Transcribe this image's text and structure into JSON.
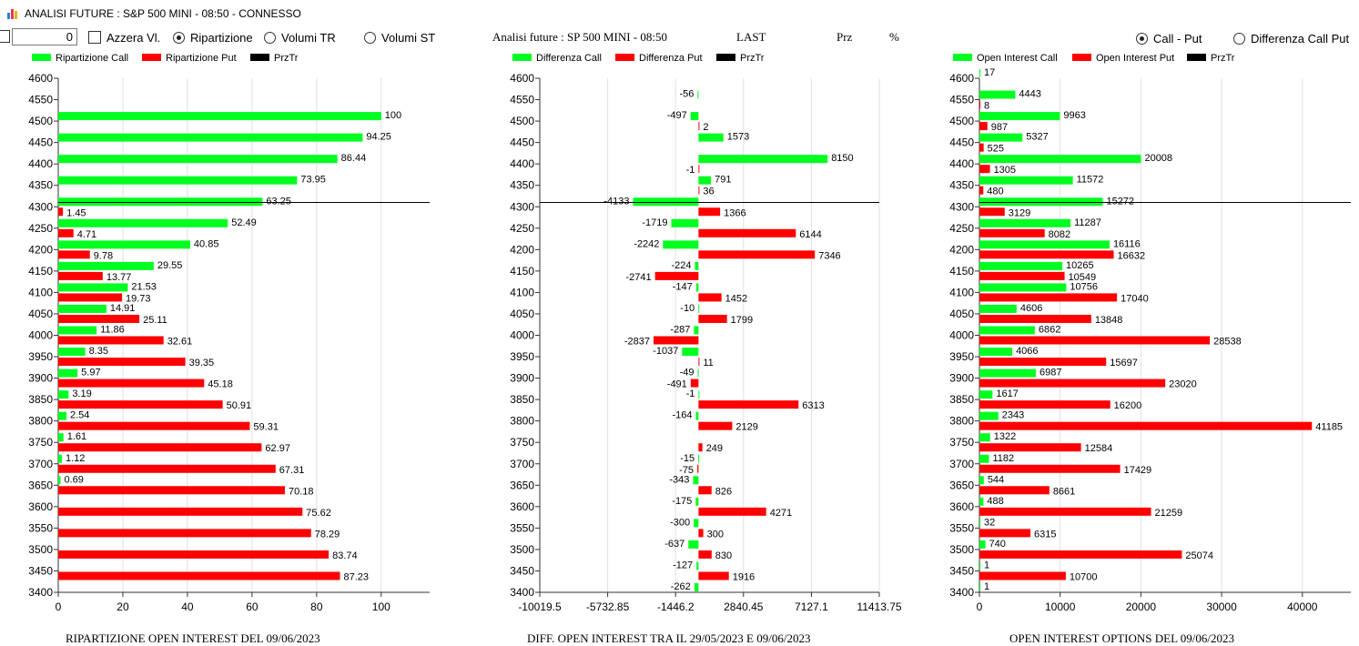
{
  "window": {
    "title": "ANALISI FUTURE : S&P 500 MINI - 08:50 - CONNESSO"
  },
  "controls": {
    "number_value": "0",
    "azzera_label": "Azzera Vl.",
    "radio_ripartizione": "Ripartizione",
    "radio_volumi_tr": "Volumi TR",
    "radio_volumi_st": "Volumi ST",
    "radio_call_put": "Call - Put",
    "radio_diff_call_put": "Differenza Call Put"
  },
  "header_info": {
    "analysis_title": "Analisi future : SP 500 MINI - 08:50",
    "last_label": "LAST",
    "prz_label": "Prz",
    "pct_label": "%"
  },
  "colors": {
    "call": "#00ff21",
    "put": "#ff0000",
    "prztr": "#000000"
  },
  "chart_data": [
    {
      "type": "bar",
      "orientation": "horizontal",
      "title": "RIPARTIZIONE OPEN INTEREST DEL 09/06/2023",
      "legend": [
        "Ripartizione Call",
        "Ripartizione Put",
        "PrzTr"
      ],
      "legend_placement": "top",
      "categories": [
        4600,
        4550,
        4500,
        4450,
        4400,
        4350,
        4300,
        4250,
        4200,
        4150,
        4100,
        4050,
        4000,
        3950,
        3900,
        3850,
        3800,
        3750,
        3700,
        3650,
        3600,
        3550,
        3500,
        3450,
        3400
      ],
      "series": [
        {
          "name": "Ripartizione Call",
          "values": [
            null,
            null,
            100,
            94.25,
            86.44,
            73.95,
            63.25,
            52.49,
            40.85,
            29.55,
            21.53,
            14.91,
            11.86,
            8.35,
            5.97,
            3.19,
            2.54,
            1.61,
            1.12,
            0.69,
            null,
            null,
            null,
            null,
            null
          ]
        },
        {
          "name": "Ripartizione Put",
          "values": [
            null,
            null,
            null,
            null,
            null,
            null,
            1.45,
            4.71,
            9.78,
            13.77,
            19.73,
            25.11,
            32.61,
            39.35,
            45.18,
            50.91,
            59.31,
            62.97,
            67.31,
            70.18,
            75.62,
            78.29,
            83.74,
            87.23,
            null
          ]
        }
      ],
      "reference_line": 4310,
      "xlim": [
        0,
        115
      ],
      "xticks": [
        "0",
        "20",
        "40",
        "60",
        "80",
        "100"
      ],
      "ylim": [
        3400,
        4600
      ],
      "grid": true
    },
    {
      "type": "bar",
      "orientation": "horizontal",
      "title": "DIFF. OPEN INTEREST TRA IL 29/05/2023 E 09/06/2023",
      "legend": [
        "Differenza Call",
        "Differenza Put",
        "PrzTr"
      ],
      "legend_placement": "top",
      "categories": [
        4600,
        4550,
        4500,
        4450,
        4400,
        4350,
        4300,
        4250,
        4200,
        4150,
        4100,
        4050,
        4000,
        3950,
        3900,
        3850,
        3800,
        3750,
        3700,
        3650,
        3600,
        3550,
        3500,
        3450,
        3400
      ],
      "series": [
        {
          "name": "Differenza Call",
          "values": [
            null,
            -56,
            -497,
            1573,
            8150,
            791,
            -4133,
            -1719,
            -2242,
            -224,
            -147,
            -10,
            -287,
            -1037,
            -49,
            -1,
            -164,
            null,
            -15,
            -343,
            -175,
            -300,
            -637,
            -127,
            -262
          ]
        },
        {
          "name": "Differenza Put",
          "values": [
            null,
            null,
            2,
            null,
            -1,
            36,
            1366,
            6144,
            7346,
            -2741,
            1452,
            1799,
            -2837,
            11,
            -491,
            6313,
            2129,
            249,
            -75,
            826,
            4271,
            300,
            830,
            1916,
            null
          ]
        }
      ],
      "reference_line": 4310,
      "xlim": [
        -10019.5,
        11413.75
      ],
      "xticks": [
        "-10019.5",
        "-5732.85",
        "-1446.2",
        "2840.45",
        "7127.1",
        "11413.75"
      ],
      "ylim": [
        3400,
        4600
      ],
      "grid": true
    },
    {
      "type": "bar",
      "orientation": "horizontal",
      "title": "OPEN INTEREST OPTIONS DEL 09/06/2023",
      "legend": [
        "Open Interest Call",
        "Open Interest Put",
        "PrzTr"
      ],
      "legend_placement": "top",
      "categories": [
        4600,
        4550,
        4500,
        4450,
        4400,
        4350,
        4300,
        4250,
        4200,
        4150,
        4100,
        4050,
        4000,
        3950,
        3900,
        3850,
        3800,
        3750,
        3700,
        3650,
        3600,
        3550,
        3500,
        3450,
        3400
      ],
      "series": [
        {
          "name": "Open Interest Call",
          "values": [
            17,
            4443,
            9963,
            5327,
            20008,
            11572,
            15272,
            11287,
            16116,
            10265,
            10756,
            4606,
            6862,
            4066,
            6987,
            1617,
            2343,
            1322,
            1182,
            544,
            488,
            32,
            740,
            1,
            1
          ]
        },
        {
          "name": "Open Interest Put",
          "values": [
            null,
            8,
            987,
            525,
            1305,
            480,
            3129,
            8082,
            16632,
            10549,
            17040,
            13848,
            28538,
            15697,
            23020,
            16200,
            41185,
            12584,
            17429,
            8661,
            21259,
            6315,
            25074,
            10700,
            null
          ]
        }
      ],
      "reference_line": 4310,
      "xlim": [
        0,
        46000
      ],
      "xticks": [
        "0",
        "10000",
        "20000",
        "30000",
        "40000"
      ],
      "ylim": [
        3400,
        4600
      ],
      "grid": true
    }
  ]
}
